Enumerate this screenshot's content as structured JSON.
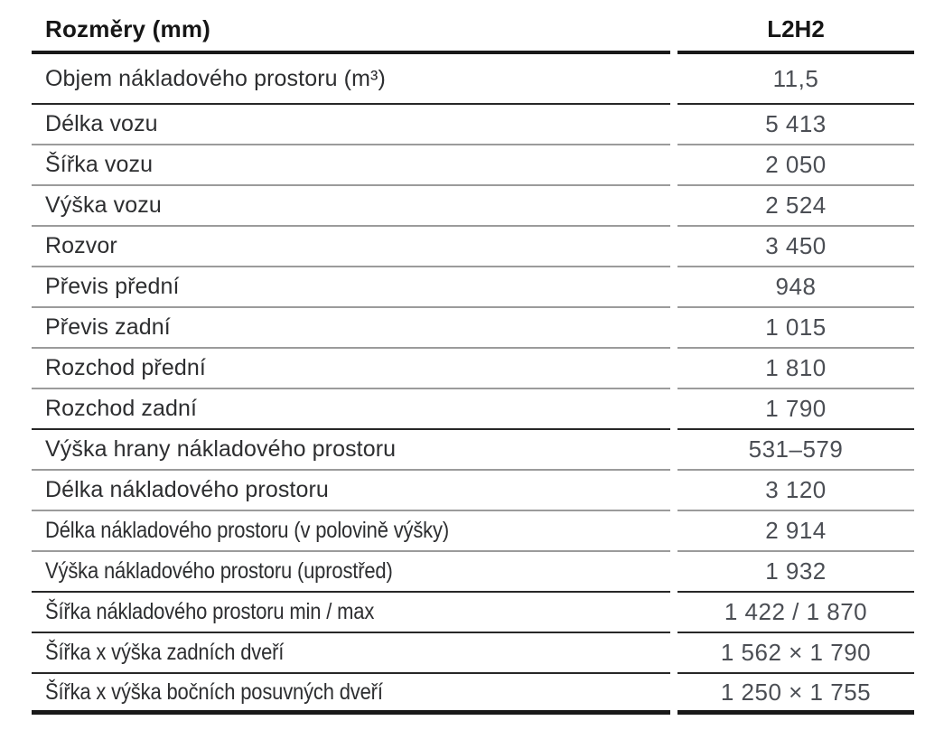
{
  "table": {
    "header": {
      "dimension_label": "Rozměry (mm)",
      "variant_label": "L2H2"
    },
    "rows": [
      {
        "label": "Objem nákladového prostoru (m³)",
        "value": "11,5"
      },
      {
        "label": "Délka vozu",
        "value": "5 413"
      },
      {
        "label": "Šířka vozu",
        "value": "2 050"
      },
      {
        "label": "Výška vozu",
        "value": "2 524"
      },
      {
        "label": "Rozvor",
        "value": "3 450"
      },
      {
        "label": "Převis přední",
        "value": "948"
      },
      {
        "label": "Převis zadní",
        "value": "1 015"
      },
      {
        "label": "Rozchod přední",
        "value": "1 810"
      },
      {
        "label": "Rozchod zadní",
        "value": "1 790"
      },
      {
        "label": "Výška hrany nákladového prostoru",
        "value": "531–579"
      },
      {
        "label": "Délka nákladového prostoru",
        "value": "3 120"
      },
      {
        "label": "Délka nákladového prostoru (v polovině výšky)",
        "value": "2 914"
      },
      {
        "label": "Výška nákladového prostoru (uprostřed)",
        "value": "1 932"
      },
      {
        "label": "Šířka nákladového prostoru min / max",
        "value": "1 422 / 1 870"
      },
      {
        "label": "Šířka x výška zadních dveří",
        "value": "1 562 × 1 790"
      },
      {
        "label": "Šířka x výška bočních posuvných dveří",
        "value": "1 250 × 1 755"
      }
    ],
    "colors": {
      "heavy_rule": "#191919",
      "dark_rule": "#272727",
      "light_rule": "#9b9b9b",
      "label_text": "#2d2e30",
      "value_text": "#4b4e54"
    }
  }
}
